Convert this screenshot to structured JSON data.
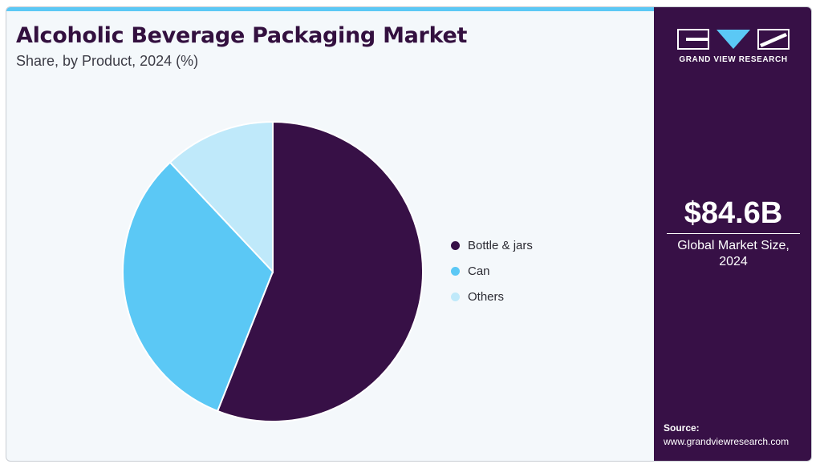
{
  "header": {
    "title": "Alcoholic Beverage Packaging Market",
    "subtitle": "Share, by Product, 2024 (%)"
  },
  "chart_data": {
    "type": "pie",
    "title": "Alcoholic Beverage Packaging Market",
    "subtitle": "Share, by Product, 2024 (%)",
    "categories": [
      "Bottle & jars",
      "Can",
      "Others"
    ],
    "values": [
      56,
      32,
      12
    ],
    "colors": [
      "#371046",
      "#5bc8f5",
      "#bfe9fa"
    ],
    "legend_position": "right"
  },
  "side_panel": {
    "brand": "GRAND VIEW RESEARCH",
    "market_value": "$84.6B",
    "market_caption": "Global Market Size, 2024",
    "source_label": "Source:",
    "source_url": "www.grandviewresearch.com",
    "background_color": "#371046"
  }
}
